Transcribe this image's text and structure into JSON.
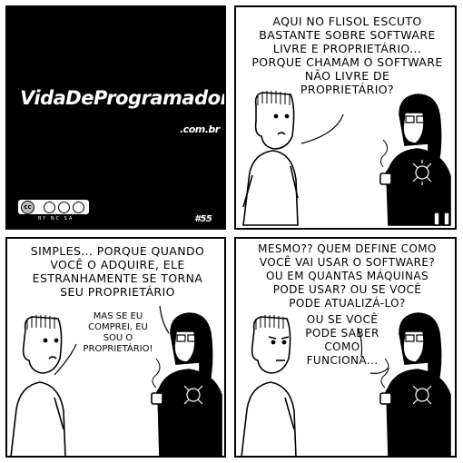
{
  "panel1": {
    "logo_text": "VidaDeProgramador",
    "domain": ".com.br",
    "license_badges": [
      "cc",
      "BY",
      "NC",
      "SA"
    ],
    "strip_number": "#55"
  },
  "panel2": {
    "speech": [
      "AQUI NO FLISOL ESCUTO",
      "BASTANTE SOBRE SOFTWARE",
      "LIVRE E PROPRIETÁRIO...",
      "PORQUE CHAMAM O SOFTWARE",
      "NÃO LIVRE DE",
      "PROPRIETÁRIO?"
    ]
  },
  "panel3": {
    "speech_main": [
      "SIMPLES... PORQUE QUANDO",
      "VOCÊ O ADQUIRE, ELE",
      "ESTRANHAMENTE SE TORNA",
      "SEU PROPRIETÁRIO"
    ],
    "speech_reply": [
      "MAS SE EU",
      "COMPREI, EU",
      "SOU O",
      "PROPRIETÁRIO!"
    ]
  },
  "panel4": {
    "speech_main": [
      "MESMO?? QUEM DEFINE COMO",
      "VOCÊ VAI USAR O SOFTWARE?",
      "OU EM QUANTAS MÁQUINAS",
      "PODE USAR? OU SE VOCÊ",
      "PODE ATUALIZÁ-LO?"
    ],
    "speech_extra": [
      "OU SE VOCÊ",
      "PODE SABER",
      "COMO",
      "FUNCIONA..."
    ]
  }
}
